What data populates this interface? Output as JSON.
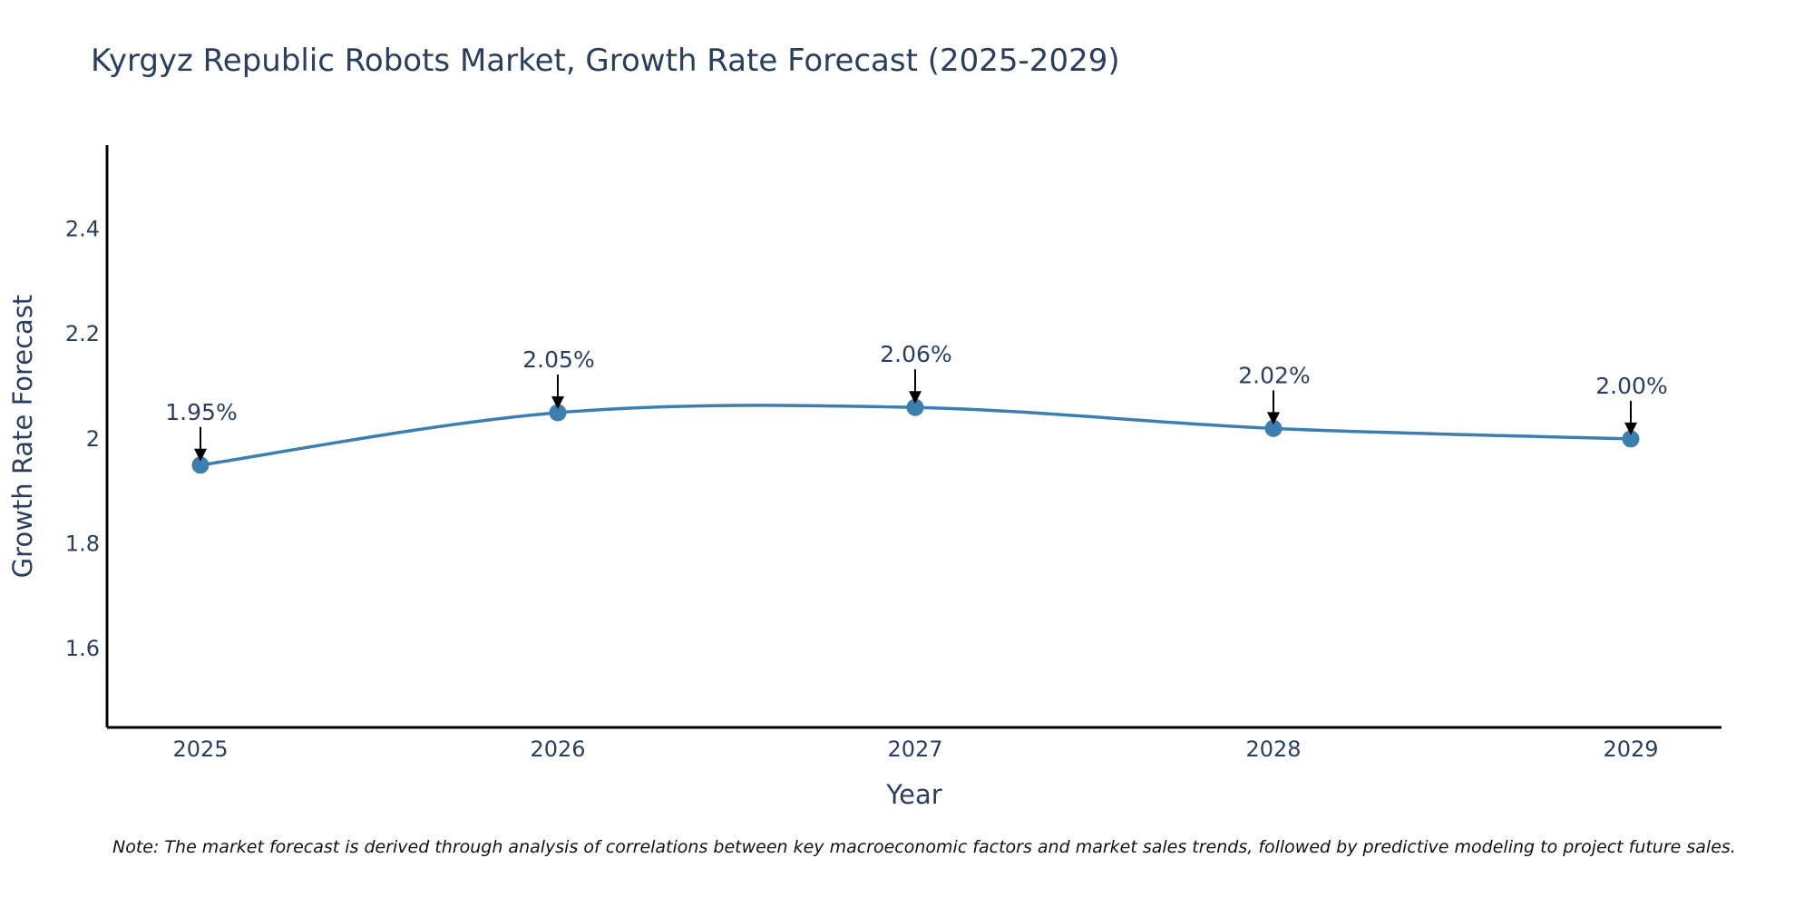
{
  "chart_data": {
    "type": "line",
    "title": "Kyrgyz Republic Robots Market, Growth Rate Forecast (2025-2029)",
    "xlabel": "Year",
    "ylabel": "Growth Rate Forecast",
    "categories": [
      "2025",
      "2026",
      "2027",
      "2028",
      "2029"
    ],
    "series": [
      {
        "name": "Growth Rate Forecast",
        "values": [
          1.95,
          2.05,
          2.06,
          2.02,
          2.0
        ],
        "labels": [
          "1.95%",
          "2.05%",
          "2.06%",
          "2.02%",
          "2.00%"
        ]
      }
    ],
    "ylim": [
      1.45,
      2.56
    ],
    "yticks": [
      1.6,
      1.8,
      2,
      2.2,
      2.4
    ],
    "ytick_labels": [
      "1.6",
      "1.8",
      "2",
      "2.2",
      "2.4"
    ],
    "grid": false,
    "line_shape": "spline",
    "colors": {
      "line": "#3d7eb0",
      "marker": "#3d7eb0",
      "arrow": "#000000",
      "text": "#2a3f5f",
      "axis": "#000000"
    },
    "note": "Note: The market forecast is derived through analysis of correlations between key macroeconomic factors and market sales trends, followed by predictive modeling to project future sales."
  }
}
